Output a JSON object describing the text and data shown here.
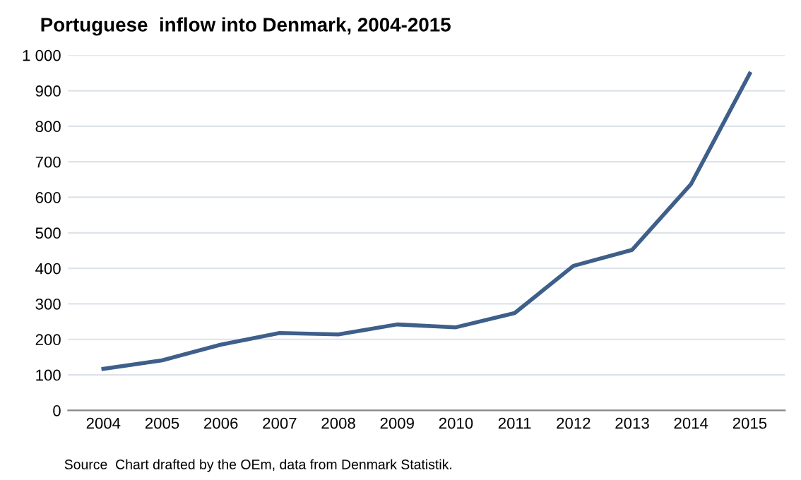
{
  "chart_data": {
    "type": "line",
    "title": "Portuguese  inflow into Denmark, 2004-2015",
    "categories": [
      "2004",
      "2005",
      "2006",
      "2007",
      "2008",
      "2009",
      "2010",
      "2011",
      "2012",
      "2013",
      "2014",
      "2015"
    ],
    "series": [
      {
        "color": "#3e5f8a",
        "values": [
          117,
          141,
          185,
          218,
          214,
          242,
          234,
          274,
          407,
          452,
          637,
          948
        ]
      }
    ],
    "ylim": [
      0,
      1000
    ],
    "yticks": [
      0,
      100,
      200,
      300,
      400,
      500,
      600,
      700,
      800,
      900,
      {
        "value": 1000,
        "label": "1 000"
      }
    ],
    "grid": "y",
    "marker": "none",
    "line_style": "solid",
    "annotations": [
      "Source  Chart drafted by the OEm, data from Denmark Statistik."
    ]
  }
}
